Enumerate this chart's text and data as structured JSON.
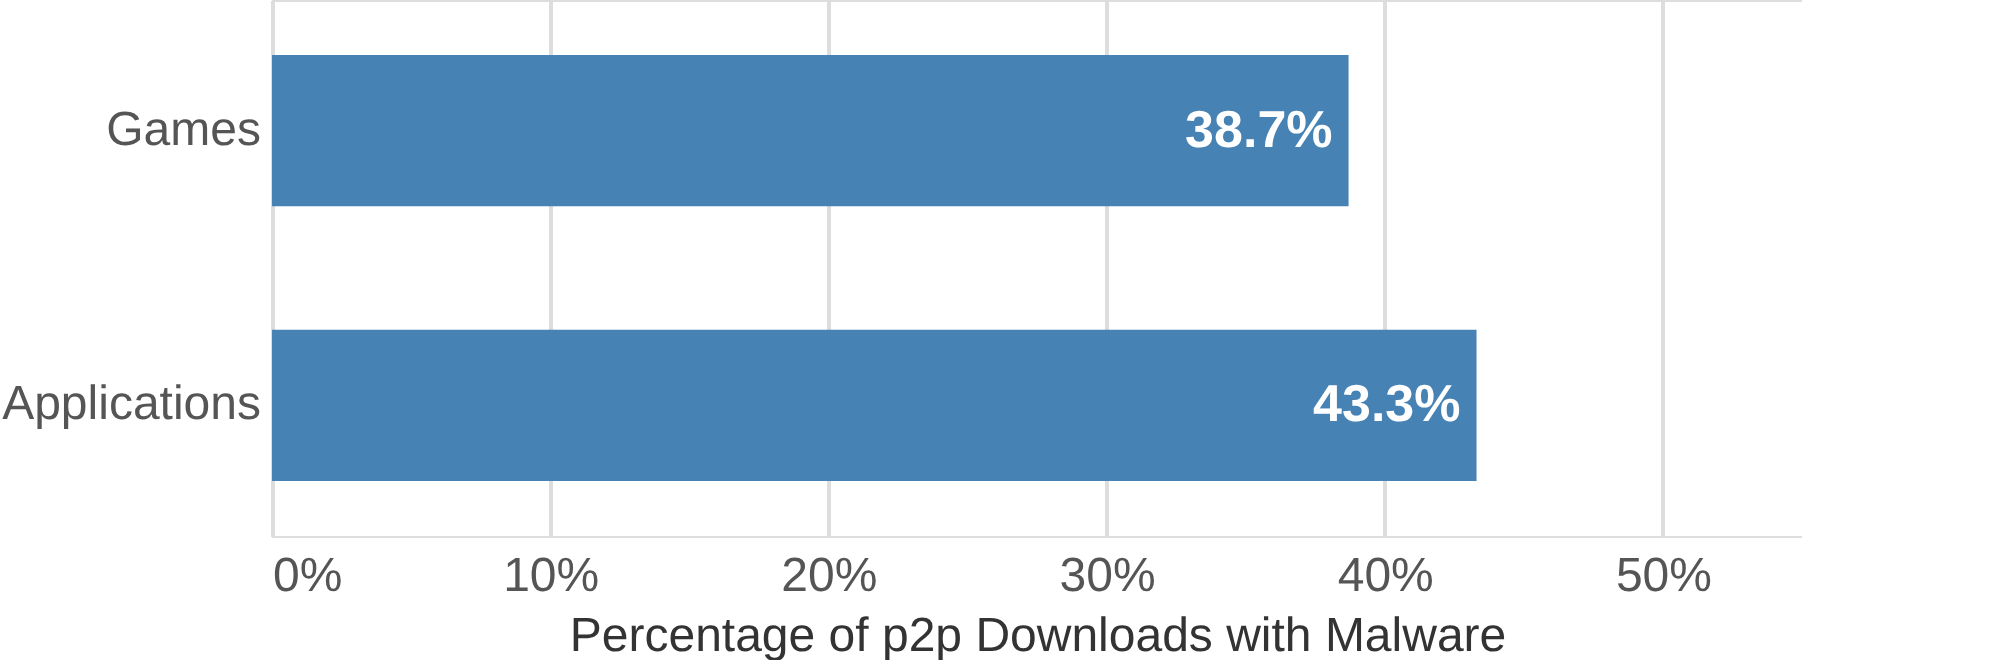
{
  "chart_data": {
    "type": "bar",
    "orientation": "horizontal",
    "xlabel": "Percentage of p2p Downloads with Malware",
    "categories": [
      "Games",
      "Applications"
    ],
    "values": [
      38.7,
      43.3
    ],
    "color": "#4682b4",
    "value_labels": [
      "38.7%",
      "43.3%"
    ],
    "xlim": [
      0,
      55
    ],
    "xticks": [
      {
        "value": 0,
        "label": "0%"
      },
      {
        "value": 10,
        "label": "10%"
      },
      {
        "value": 20,
        "label": "20%"
      },
      {
        "value": 30,
        "label": "30%"
      },
      {
        "value": 40,
        "label": "40%"
      },
      {
        "value": 50,
        "label": "50%"
      }
    ],
    "grid": "x"
  }
}
